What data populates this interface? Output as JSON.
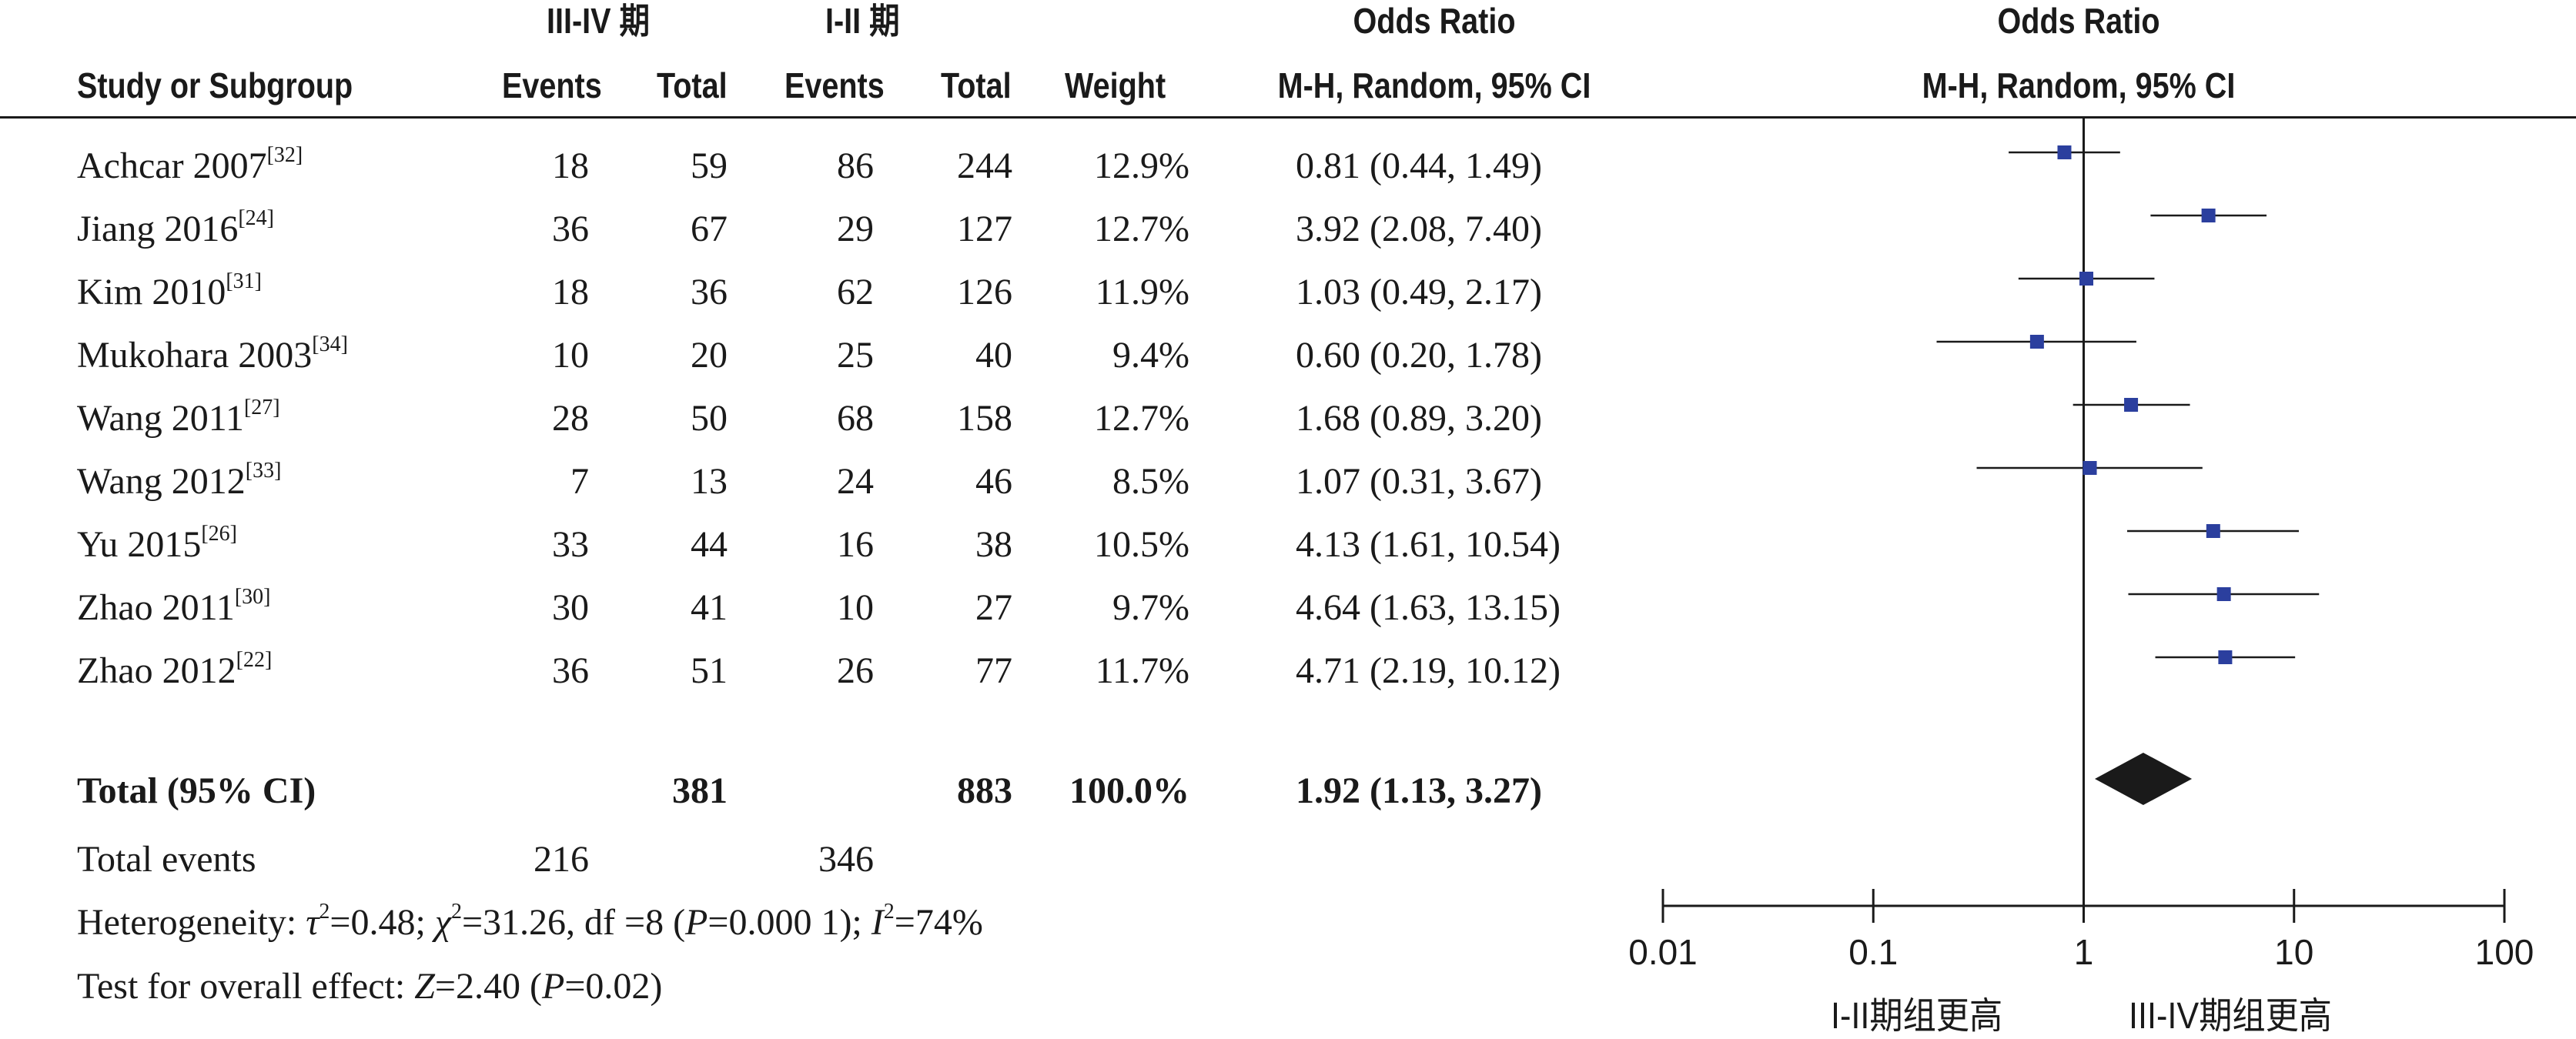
{
  "header": {
    "group1_label": "III-IV  期",
    "group2_label": "I-II  期",
    "odds_ratio_title": "Odds Ratio",
    "method_label": "M-H, Random, 95% CI",
    "plot_title": "Odds Ratio",
    "plot_method_label": "M-H, Random, 95% CI",
    "col_study": "Study or Subgroup",
    "col_events1": "Events",
    "col_total1": "Total",
    "col_events2": "Events",
    "col_total2": "Total",
    "col_weight": "Weight"
  },
  "studies": [
    {
      "name": "Achcar 2007",
      "ref": "[32]",
      "events1": "18",
      "total1": "59",
      "events2": "86",
      "total2": "244",
      "weight": "12.9%",
      "ci_text": "0.81 (0.44, 1.49)"
    },
    {
      "name": "Jiang 2016",
      "ref": "[24]",
      "events1": "36",
      "total1": "67",
      "events2": "29",
      "total2": "127",
      "weight": "12.7%",
      "ci_text": "3.92 (2.08, 7.40)"
    },
    {
      "name": "Kim 2010",
      "ref": "[31]",
      "events1": "18",
      "total1": "36",
      "events2": "62",
      "total2": "126",
      "weight": "11.9%",
      "ci_text": "1.03 (0.49, 2.17)"
    },
    {
      "name": "Mukohara 2003",
      "ref": "[34]",
      "events1": "10",
      "total1": "20",
      "events2": "25",
      "total2": "40",
      "weight": "9.4%",
      "ci_text": "0.60 (0.20, 1.78)"
    },
    {
      "name": "Wang 2011",
      "ref": "[27]",
      "events1": "28",
      "total1": "50",
      "events2": "68",
      "total2": "158",
      "weight": "12.7%",
      "ci_text": "1.68 (0.89, 3.20)"
    },
    {
      "name": "Wang 2012",
      "ref": "[33]",
      "events1": "7",
      "total1": "13",
      "events2": "24",
      "total2": "46",
      "weight": "8.5%",
      "ci_text": "1.07 (0.31, 3.67)"
    },
    {
      "name": "Yu 2015",
      "ref": "[26]",
      "events1": "33",
      "total1": "44",
      "events2": "16",
      "total2": "38",
      "weight": "10.5%",
      "ci_text": "4.13 (1.61, 10.54)"
    },
    {
      "name": "Zhao 2011",
      "ref": "[30]",
      "events1": "30",
      "total1": "41",
      "events2": "10",
      "total2": "27",
      "weight": "9.7%",
      "ci_text": "4.64 (1.63, 13.15)"
    },
    {
      "name": "Zhao 2012",
      "ref": "[22]",
      "events1": "36",
      "total1": "51",
      "events2": "26",
      "total2": "77",
      "weight": "11.7%",
      "ci_text": "4.71 (2.19, 10.12)"
    }
  ],
  "total": {
    "label": "Total (95% CI)",
    "total1": "381",
    "total2": "883",
    "weight": "100.0%",
    "ci_text": "1.92 (1.13, 3.27)"
  },
  "total_events": {
    "label": "Total events",
    "events1": "216",
    "events2": "346"
  },
  "heterogeneity": "Heterogeneity: τ²=0.48; χ²=31.26, df =8 (P=0.000 1); I²=74%",
  "overall_effect": "Test for overall effect: Z=2.40 (P=0.02)",
  "axis": {
    "favours_left": "I-II期组更高",
    "favours_right": "III-IV期组更高"
  },
  "chart_data": {
    "type": "forest",
    "scale": "log",
    "xlim": [
      0.01,
      100
    ],
    "ticks": [
      0.01,
      0.1,
      1,
      10,
      100
    ],
    "tick_labels": [
      "0.01",
      "0.1",
      "1",
      "10",
      "100"
    ],
    "reference_line": 1,
    "marker_color": "#2b3f9e",
    "studies": [
      {
        "label": "Achcar 2007",
        "or": 0.81,
        "lo": 0.44,
        "hi": 1.49,
        "weight": 12.9
      },
      {
        "label": "Jiang 2016",
        "or": 3.92,
        "lo": 2.08,
        "hi": 7.4,
        "weight": 12.7
      },
      {
        "label": "Kim 2010",
        "or": 1.03,
        "lo": 0.49,
        "hi": 2.17,
        "weight": 11.9
      },
      {
        "label": "Mukohara 2003",
        "or": 0.6,
        "lo": 0.2,
        "hi": 1.78,
        "weight": 9.4
      },
      {
        "label": "Wang 2011",
        "or": 1.68,
        "lo": 0.89,
        "hi": 3.2,
        "weight": 12.7
      },
      {
        "label": "Wang 2012",
        "or": 1.07,
        "lo": 0.31,
        "hi": 3.67,
        "weight": 8.5
      },
      {
        "label": "Yu 2015",
        "or": 4.13,
        "lo": 1.61,
        "hi": 10.54,
        "weight": 10.5
      },
      {
        "label": "Zhao 2011",
        "or": 4.64,
        "lo": 1.63,
        "hi": 13.15,
        "weight": 9.7
      },
      {
        "label": "Zhao 2012",
        "or": 4.71,
        "lo": 2.19,
        "hi": 10.12,
        "weight": 11.7
      }
    ],
    "pooled": {
      "label": "Total (95% CI)",
      "or": 1.92,
      "lo": 1.13,
      "hi": 3.27
    }
  }
}
